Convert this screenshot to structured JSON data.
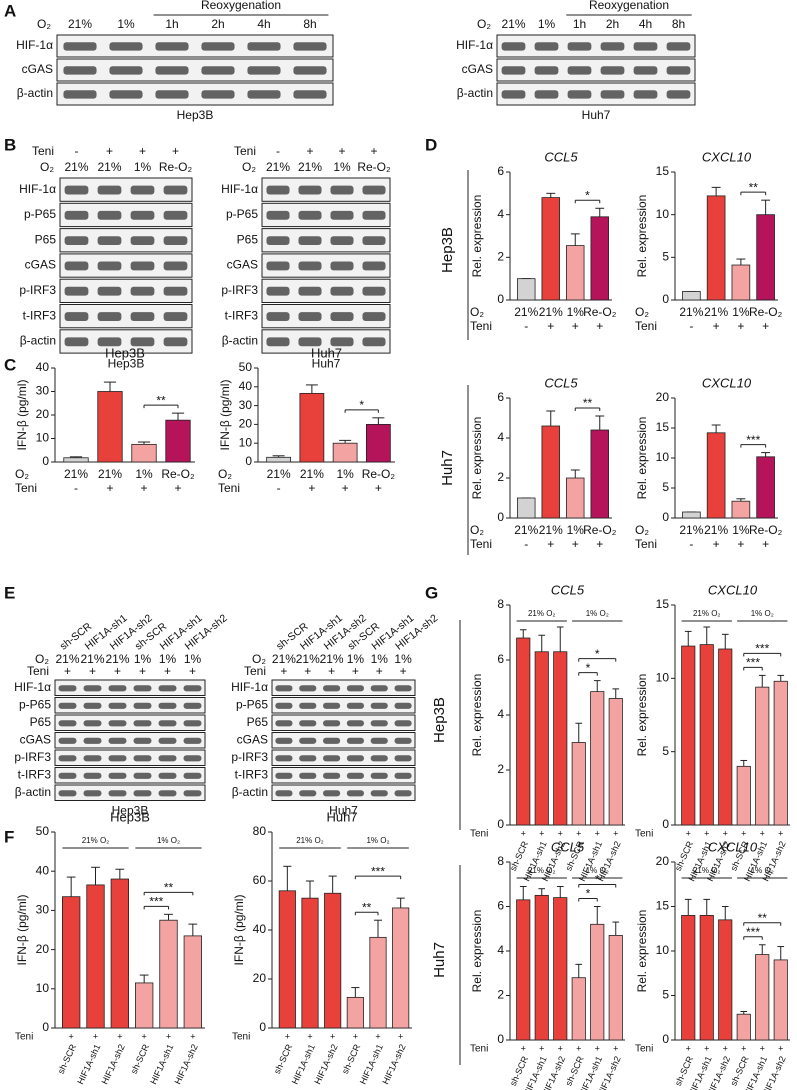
{
  "panel_labels": [
    "A",
    "B",
    "C",
    "D",
    "E",
    "F",
    "G"
  ],
  "blots": [
    {
      "panel": "A",
      "cell_line": "Hep3B",
      "lane_header_label": "O₂",
      "lanes": [
        "21%",
        "1%",
        "1h",
        "2h",
        "4h",
        "8h"
      ],
      "group_label": "Reoxygenation",
      "group_lanes": [
        2,
        5
      ],
      "rows": [
        "HIF-1α",
        "cGAS",
        "β-actin"
      ]
    },
    {
      "panel": "A",
      "cell_line": "Huh7",
      "lane_header_label": "O₂",
      "lanes": [
        "21%",
        "1%",
        "1h",
        "2h",
        "4h",
        "8h"
      ],
      "group_label": "Reoxygenation",
      "group_lanes": [
        2,
        5
      ],
      "rows": [
        "HIF-1α",
        "cGAS",
        "β-actin"
      ]
    },
    {
      "panel": "B",
      "cell_line": "Hep3B",
      "teni_label": "Teni",
      "teni": [
        "-",
        "+",
        "+",
        "+"
      ],
      "lane_header_label": "O₂",
      "lanes": [
        "21%",
        "21%",
        "1%",
        "Re-O₂"
      ],
      "rows": [
        "HIF-1α",
        "p-P65",
        "P65",
        "cGAS",
        "p-IRF3",
        "t-IRF3",
        "β-actin"
      ]
    },
    {
      "panel": "B",
      "cell_line": "Huh7",
      "teni_label": "Teni",
      "teni": [
        "-",
        "+",
        "+",
        "+"
      ],
      "lane_header_label": "O₂",
      "lanes": [
        "21%",
        "21%",
        "1%",
        "Re-O₂"
      ],
      "rows": [
        "HIF-1α",
        "p-P65",
        "P65",
        "cGAS",
        "p-IRF3",
        "t-IRF3",
        "β-actin"
      ]
    },
    {
      "panel": "E",
      "cell_line": "Hep3B",
      "lane_names": [
        "sh-SCR",
        "HIF1A-sh1",
        "HIF1A-sh2",
        "sh-SCR",
        "HIF1A-sh1",
        "HIF1A-sh2"
      ],
      "lane_header_label": "O₂",
      "lanes": [
        "21%",
        "21%",
        "21%",
        "1%",
        "1%",
        "1%"
      ],
      "teni_label": "Teni",
      "teni": [
        "+",
        "+",
        "+",
        "+",
        "+",
        "+"
      ],
      "rows": [
        "HIF-1α",
        "p-P65",
        "P65",
        "cGAS",
        "p-IRF3",
        "t-IRF3",
        "β-actin"
      ]
    },
    {
      "panel": "E",
      "cell_line": "Huh7",
      "lane_names": [
        "sh-SCR",
        "HIF1A-sh1",
        "HIF1A-sh2",
        "sh-SCR",
        "HIF1A-sh1",
        "HIF1A-sh2"
      ],
      "lane_header_label": "O₂",
      "lanes": [
        "21%",
        "21%",
        "21%",
        "1%",
        "1%",
        "1%"
      ],
      "teni_label": "Teni",
      "teni": [
        "+",
        "+",
        "+",
        "+",
        "+",
        "+"
      ],
      "rows": [
        "HIF-1α",
        "p-P65",
        "P65",
        "cGAS",
        "p-IRF3",
        "t-IRF3",
        "β-actin"
      ]
    }
  ],
  "row_labels": {
    "D": [
      "Hep3B",
      "Huh7"
    ],
    "G": [
      "Hep3B",
      "Huh7"
    ]
  },
  "chart_data": [
    {
      "type": "bar",
      "title": "Hep3B",
      "ylabel": "IFN-β (pg/ml)",
      "ylim": [
        0,
        40
      ],
      "yticks": [
        0,
        10,
        20,
        30,
        40
      ],
      "category_label": "O₂",
      "categories": [
        "21%",
        "21%",
        "1%",
        "Re-O₂"
      ],
      "teni_label": "Teni",
      "teni": [
        "-",
        "+",
        "+",
        "+"
      ],
      "values": [
        1.8,
        30,
        7.5,
        17.8
      ],
      "errors": [
        0.4,
        4,
        1,
        3
      ],
      "colors": [
        "#d3d3d3",
        "#e8413c",
        "#f4a3a3",
        "#b5135a"
      ],
      "significance": [
        {
          "pair": [
            2,
            3
          ],
          "label": "**"
        }
      ]
    },
    {
      "type": "bar",
      "title": "Huh7",
      "ylabel": "IFN-β (pg/ml)",
      "ylim": [
        0,
        50
      ],
      "yticks": [
        0,
        10,
        20,
        30,
        40,
        50
      ],
      "category_label": "O₂",
      "categories": [
        "21%",
        "21%",
        "1%",
        "Re-O₂"
      ],
      "teni_label": "Teni",
      "teni": [
        "-",
        "+",
        "+",
        "+"
      ],
      "values": [
        2.5,
        36.5,
        10,
        20
      ],
      "errors": [
        0.8,
        4.5,
        1.5,
        3.5
      ],
      "colors": [
        "#d3d3d3",
        "#e8413c",
        "#f4a3a3",
        "#b5135a"
      ],
      "significance": [
        {
          "pair": [
            2,
            3
          ],
          "label": "*"
        }
      ]
    },
    {
      "type": "bar",
      "title": "CCL5",
      "title_italic": true,
      "ylabel": "Rel. expression",
      "ylim": [
        0,
        6
      ],
      "yticks": [
        0,
        2,
        4,
        6
      ],
      "category_label": "O₂",
      "categories": [
        "21%",
        "21%",
        "1%",
        "Re-O₂"
      ],
      "teni_label": "Teni",
      "teni": [
        "-",
        "+",
        "+",
        "+"
      ],
      "values": [
        1,
        4.8,
        2.55,
        3.9
      ],
      "errors": [
        0,
        0.2,
        0.55,
        0.4
      ],
      "colors": [
        "#d3d3d3",
        "#e8413c",
        "#f4a3a3",
        "#b5135a"
      ],
      "significance": [
        {
          "pair": [
            2,
            3
          ],
          "label": "*"
        }
      ]
    },
    {
      "type": "bar",
      "title": "CXCL10",
      "title_italic": true,
      "ylabel": "Rel. expression",
      "ylim": [
        0,
        15
      ],
      "yticks": [
        0,
        5,
        10,
        15
      ],
      "category_label": "O₂",
      "categories": [
        "21%",
        "21%",
        "1%",
        "Re-O₂"
      ],
      "teni_label": "Teni",
      "teni": [
        "-",
        "+",
        "+",
        "+"
      ],
      "values": [
        1,
        12.2,
        4.1,
        10
      ],
      "errors": [
        0,
        1,
        0.7,
        1.7
      ],
      "colors": [
        "#d3d3d3",
        "#e8413c",
        "#f4a3a3",
        "#b5135a"
      ],
      "significance": [
        {
          "pair": [
            2,
            3
          ],
          "label": "**"
        }
      ]
    },
    {
      "type": "bar",
      "title": "CCL5",
      "title_italic": true,
      "ylabel": "Rel. expression",
      "ylim": [
        0,
        6
      ],
      "yticks": [
        0,
        2,
        4,
        6
      ],
      "category_label": "O₂",
      "categories": [
        "21%",
        "21%",
        "1%",
        "Re-O₂"
      ],
      "teni_label": "Teni",
      "teni": [
        "-",
        "+",
        "+",
        "+"
      ],
      "values": [
        1,
        4.6,
        2,
        4.4
      ],
      "errors": [
        0,
        0.75,
        0.4,
        0.7
      ],
      "colors": [
        "#d3d3d3",
        "#e8413c",
        "#f4a3a3",
        "#b5135a"
      ],
      "significance": [
        {
          "pair": [
            2,
            3
          ],
          "label": "**"
        }
      ]
    },
    {
      "type": "bar",
      "title": "CXCL10",
      "title_italic": true,
      "ylabel": "Rel. expression",
      "ylim": [
        0,
        20
      ],
      "yticks": [
        0,
        5,
        10,
        15,
        20
      ],
      "category_label": "O₂",
      "categories": [
        "21%",
        "21%",
        "1%",
        "Re-O₂"
      ],
      "teni_label": "Teni",
      "teni": [
        "-",
        "+",
        "+",
        "+"
      ],
      "values": [
        1,
        14.2,
        2.8,
        10.2
      ],
      "errors": [
        0,
        1.3,
        0.4,
        0.7
      ],
      "colors": [
        "#d3d3d3",
        "#e8413c",
        "#f4a3a3",
        "#b5135a"
      ],
      "significance": [
        {
          "pair": [
            2,
            3
          ],
          "label": "***"
        }
      ]
    },
    {
      "type": "bar",
      "title": "Hep3B",
      "ylabel": "IFN-β (pg/ml)",
      "ylim": [
        0,
        50
      ],
      "yticks": [
        0,
        10,
        20,
        30,
        40,
        50
      ],
      "categories": [
        "sh-SCR",
        "HIF1A-sh1",
        "HIF1A-sh2",
        "sh-SCR",
        "HIF1A-sh1",
        "HIF1A-sh2"
      ],
      "teni_label": "Teni",
      "teni": [
        "+",
        "+",
        "+",
        "+",
        "+",
        "+"
      ],
      "groups": [
        {
          "label": "21% O₂",
          "bars": [
            0,
            2
          ]
        },
        {
          "label": "1% O₂",
          "bars": [
            3,
            5
          ]
        }
      ],
      "values": [
        33.5,
        36.5,
        38,
        11.5,
        27.5,
        23.5
      ],
      "errors": [
        5,
        4.5,
        2.5,
        2,
        1.5,
        3
      ],
      "colors": [
        "#e8413c",
        "#e8413c",
        "#e8413c",
        "#f4a3a3",
        "#f4a3a3",
        "#f4a3a3"
      ],
      "significance": [
        {
          "pair": [
            3,
            4
          ],
          "label": "***"
        },
        {
          "pair": [
            3,
            5
          ],
          "label": "**"
        }
      ]
    },
    {
      "type": "bar",
      "title": "Huh7",
      "ylabel": "IFN-β (pg/ml)",
      "ylim": [
        0,
        80
      ],
      "yticks": [
        0,
        20,
        40,
        60,
        80
      ],
      "categories": [
        "sh-SCR",
        "HIF1A-sh1",
        "HIF1A-sh2",
        "sh-SCR",
        "HIF1A-sh1",
        "HIF1A-sh2"
      ],
      "teni_label": "Teni",
      "teni": [
        "+",
        "+",
        "+",
        "+",
        "+",
        "+"
      ],
      "groups": [
        {
          "label": "21% O₂",
          "bars": [
            0,
            2
          ]
        },
        {
          "label": "1% O₂",
          "bars": [
            3,
            5
          ]
        }
      ],
      "values": [
        56,
        53,
        55,
        12.5,
        37,
        49
      ],
      "errors": [
        10,
        7,
        7,
        4,
        7,
        4
      ],
      "colors": [
        "#e8413c",
        "#e8413c",
        "#e8413c",
        "#f4a3a3",
        "#f4a3a3",
        "#f4a3a3"
      ],
      "significance": [
        {
          "pair": [
            3,
            4
          ],
          "label": "**"
        },
        {
          "pair": [
            3,
            5
          ],
          "label": "***"
        }
      ]
    },
    {
      "type": "bar",
      "title": "CCL5",
      "title_italic": true,
      "ylabel": "Rel. expression",
      "ylim": [
        0,
        8
      ],
      "yticks": [
        0,
        2,
        4,
        6,
        8
      ],
      "categories": [
        "sh-SCR",
        "HIF1A-sh1",
        "HIF1A-sh2",
        "sh-SCR",
        "HIF1A-sh1",
        "HIF1A-sh2"
      ],
      "teni_label": "Teni",
      "teni": [
        "+",
        "+",
        "+",
        "+",
        "+",
        "+"
      ],
      "groups": [
        {
          "label": "21% O₂",
          "bars": [
            0,
            2
          ]
        },
        {
          "label": "1% O₂",
          "bars": [
            3,
            5
          ]
        }
      ],
      "values": [
        6.8,
        6.3,
        6.3,
        3,
        4.85,
        4.6
      ],
      "errors": [
        0.3,
        0.6,
        0.9,
        0.7,
        0.4,
        0.35
      ],
      "colors": [
        "#e8413c",
        "#e8413c",
        "#e8413c",
        "#f4a3a3",
        "#f4a3a3",
        "#f4a3a3"
      ],
      "significance": [
        {
          "pair": [
            3,
            4
          ],
          "label": "*"
        },
        {
          "pair": [
            3,
            5
          ],
          "label": "*"
        }
      ]
    },
    {
      "type": "bar",
      "title": "CXCL10",
      "title_italic": true,
      "ylabel": "Rel. expression",
      "ylim": [
        0,
        15
      ],
      "yticks": [
        0,
        5,
        10,
        15
      ],
      "categories": [
        "sh-SCR",
        "HIF1A-sh1",
        "HIF1A-sh2",
        "sh-SCR",
        "HIF1A-sh1",
        "HIF1A-sh2"
      ],
      "teni_label": "Teni",
      "teni": [
        "+",
        "+",
        "+",
        "+",
        "+",
        "+"
      ],
      "groups": [
        {
          "label": "21% O₂",
          "bars": [
            0,
            2
          ]
        },
        {
          "label": "1% O₂",
          "bars": [
            3,
            5
          ]
        }
      ],
      "values": [
        12.2,
        12.3,
        12,
        4,
        9.4,
        9.8
      ],
      "errors": [
        1,
        1.2,
        1,
        0.4,
        0.8,
        0.4
      ],
      "colors": [
        "#e8413c",
        "#e8413c",
        "#e8413c",
        "#f4a3a3",
        "#f4a3a3",
        "#f4a3a3"
      ],
      "significance": [
        {
          "pair": [
            3,
            4
          ],
          "label": "***"
        },
        {
          "pair": [
            3,
            5
          ],
          "label": "***"
        }
      ]
    },
    {
      "type": "bar",
      "title": "CCL5",
      "title_italic": true,
      "ylabel": "Rel. expression",
      "ylim": [
        0,
        8
      ],
      "yticks": [
        0,
        2,
        4,
        6,
        8
      ],
      "categories": [
        "sh-SCR",
        "HIF1A-sh1",
        "HIF1A-sh2",
        "sh-SCR",
        "HIF1A-sh1",
        "HIF1A-sh2"
      ],
      "teni_label": "Teni",
      "teni": [
        "+",
        "+",
        "+",
        "+",
        "+",
        "+"
      ],
      "groups": [
        {
          "label": "21% O₂",
          "bars": [
            0,
            2
          ]
        },
        {
          "label": "1% O₂",
          "bars": [
            3,
            5
          ]
        }
      ],
      "values": [
        6.3,
        6.5,
        6.4,
        2.8,
        5.2,
        4.7
      ],
      "errors": [
        0.6,
        0.3,
        0.5,
        0.6,
        0.8,
        0.6
      ],
      "colors": [
        "#e8413c",
        "#e8413c",
        "#e8413c",
        "#f4a3a3",
        "#f4a3a3",
        "#f4a3a3"
      ],
      "significance": [
        {
          "pair": [
            3,
            4
          ],
          "label": "*"
        },
        {
          "pair": [
            3,
            5
          ],
          "label": "*"
        }
      ]
    },
    {
      "type": "bar",
      "title": "CXCL10",
      "title_italic": true,
      "ylabel": "Rel. expression",
      "ylim": [
        0,
        20
      ],
      "yticks": [
        0,
        5,
        10,
        15,
        20
      ],
      "categories": [
        "sh-SCR",
        "HIF1A-sh1",
        "HIF1A-sh2",
        "sh-SCR",
        "HIF1A-sh1",
        "HIF1A-sh2"
      ],
      "teni_label": "Teni",
      "teni": [
        "+",
        "+",
        "+",
        "+",
        "+",
        "+"
      ],
      "groups": [
        {
          "label": "21% O₂",
          "bars": [
            0,
            2
          ]
        },
        {
          "label": "1% O₂",
          "bars": [
            3,
            5
          ]
        }
      ],
      "values": [
        14,
        14,
        13.5,
        2.9,
        9.6,
        9
      ],
      "errors": [
        1.8,
        1.8,
        1.5,
        0.3,
        1.1,
        1.5
      ],
      "colors": [
        "#e8413c",
        "#e8413c",
        "#e8413c",
        "#f4a3a3",
        "#f4a3a3",
        "#f4a3a3"
      ],
      "significance": [
        {
          "pair": [
            3,
            4
          ],
          "label": "***"
        },
        {
          "pair": [
            3,
            5
          ],
          "label": "**"
        }
      ]
    }
  ]
}
